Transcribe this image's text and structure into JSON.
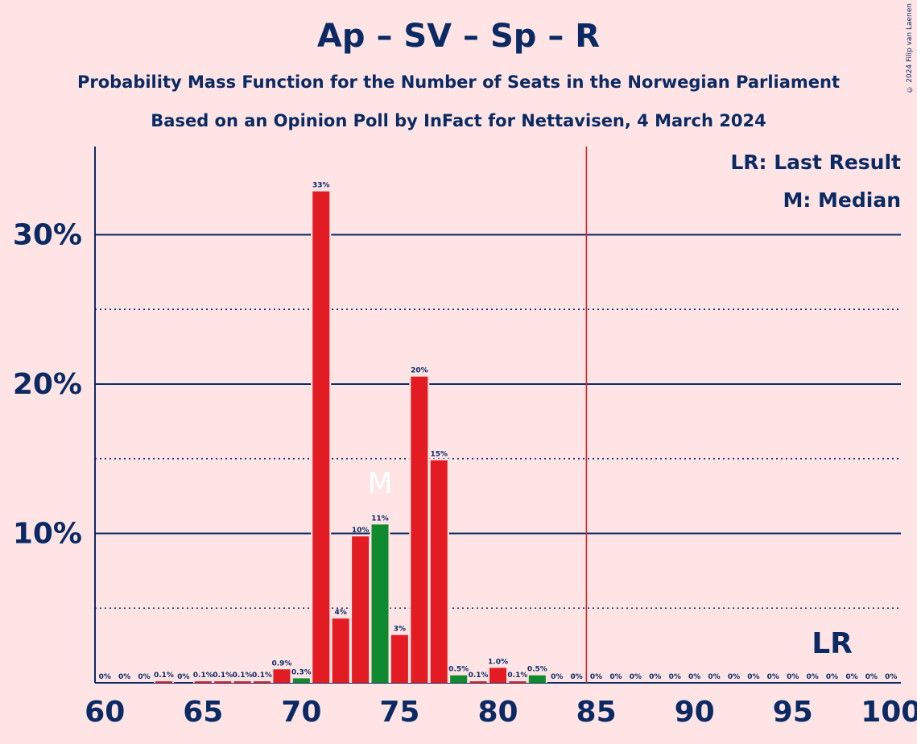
{
  "copyright": "© 2024 Filip van Laenen",
  "chart_data": {
    "type": "bar",
    "title": "Ap – SV – Sp – R",
    "subtitle": "Probability Mass Function for the Number of Seats in the Norwegian Parliament",
    "subtitle2": "Based on an Opinion Poll by InFact for Nettavisen, 4 March 2024",
    "legend": [
      "LR: Last Result",
      "M: Median"
    ],
    "x_ticks": [
      60,
      65,
      70,
      75,
      80,
      85,
      90,
      95,
      100
    ],
    "y_ticks": [
      {
        "value": 10,
        "label": "10%"
      },
      {
        "value": 20,
        "label": "20%"
      },
      {
        "value": 30,
        "label": "30%"
      }
    ],
    "ylim": [
      0,
      35.9
    ],
    "xlim": [
      59.5,
      100.5
    ],
    "majority_line": 85,
    "median": 74,
    "median_label": "M",
    "last_result": 97,
    "last_result_label": "LR",
    "colors": {
      "bar": "#e31b23",
      "median_bar": "#0f8a2f",
      "grid": "#0b2a63",
      "majority": "#e31b23",
      "text": "#0b2a63",
      "background": "#ffe4e6"
    },
    "points": [
      {
        "x": 60,
        "value": 0,
        "label": "0%"
      },
      {
        "x": 61,
        "value": 0,
        "label": "0%"
      },
      {
        "x": 62,
        "value": 0,
        "label": "0%"
      },
      {
        "x": 63,
        "value": 0.1,
        "label": "0.1%"
      },
      {
        "x": 64,
        "value": 0,
        "label": "0%"
      },
      {
        "x": 65,
        "value": 0.1,
        "label": "0.1%"
      },
      {
        "x": 66,
        "value": 0.1,
        "label": "0.1%"
      },
      {
        "x": 67,
        "value": 0.1,
        "label": "0.1%"
      },
      {
        "x": 68,
        "value": 0.1,
        "label": "0.1%"
      },
      {
        "x": 69,
        "value": 0.9,
        "label": "0.9%"
      },
      {
        "x": 70,
        "value": 0.3,
        "label": "0.3%",
        "green": true
      },
      {
        "x": 71,
        "value": 32.9,
        "label": "33%"
      },
      {
        "x": 72,
        "value": 4.3,
        "label": "4%"
      },
      {
        "x": 73,
        "value": 9.8,
        "label": "10%"
      },
      {
        "x": 74,
        "value": 10.6,
        "label": "11%",
        "green": true
      },
      {
        "x": 75,
        "value": 3.2,
        "label": "3%"
      },
      {
        "x": 76,
        "value": 20.5,
        "label": "20%"
      },
      {
        "x": 77,
        "value": 14.9,
        "label": "15%"
      },
      {
        "x": 78,
        "value": 0.5,
        "label": "0.5%",
        "green": true
      },
      {
        "x": 79,
        "value": 0.1,
        "label": "0.1%"
      },
      {
        "x": 80,
        "value": 1.0,
        "label": "1.0%"
      },
      {
        "x": 81,
        "value": 0.1,
        "label": "0.1%"
      },
      {
        "x": 82,
        "value": 0.5,
        "label": "0.5%",
        "green": true
      },
      {
        "x": 83,
        "value": 0,
        "label": "0%"
      },
      {
        "x": 84,
        "value": 0,
        "label": "0%"
      },
      {
        "x": 85,
        "value": 0,
        "label": "0%"
      },
      {
        "x": 86,
        "value": 0,
        "label": "0%"
      },
      {
        "x": 87,
        "value": 0,
        "label": "0%"
      },
      {
        "x": 88,
        "value": 0,
        "label": "0%"
      },
      {
        "x": 89,
        "value": 0,
        "label": "0%"
      },
      {
        "x": 90,
        "value": 0,
        "label": "0%"
      },
      {
        "x": 91,
        "value": 0,
        "label": "0%"
      },
      {
        "x": 92,
        "value": 0,
        "label": "0%"
      },
      {
        "x": 93,
        "value": 0,
        "label": "0%"
      },
      {
        "x": 94,
        "value": 0,
        "label": "0%"
      },
      {
        "x": 95,
        "value": 0,
        "label": "0%"
      },
      {
        "x": 96,
        "value": 0,
        "label": "0%"
      },
      {
        "x": 97,
        "value": 0,
        "label": "0%"
      },
      {
        "x": 98,
        "value": 0,
        "label": "0%"
      },
      {
        "x": 99,
        "value": 0,
        "label": "0%"
      },
      {
        "x": 100,
        "value": 0,
        "label": "0%"
      }
    ]
  }
}
